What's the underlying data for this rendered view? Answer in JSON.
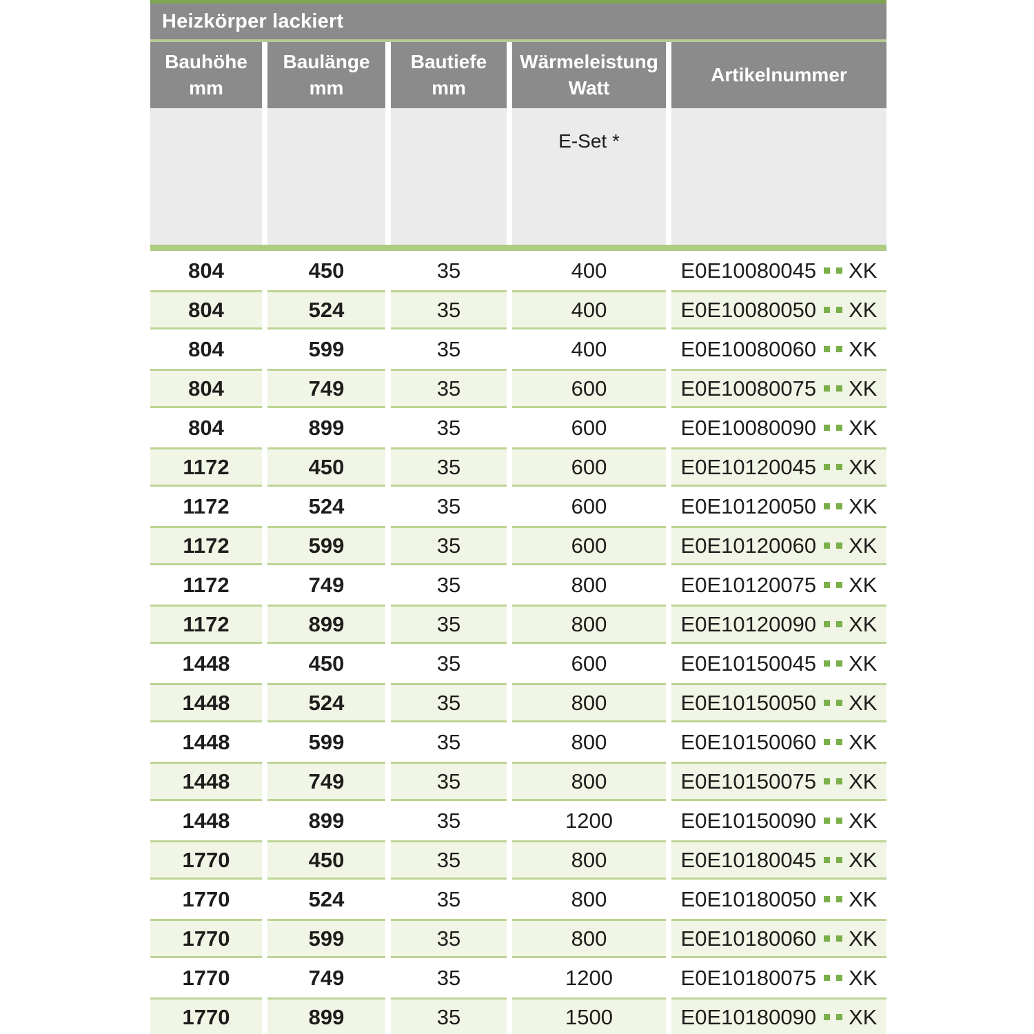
{
  "table": {
    "title": "Heizkörper lackiert",
    "columns": [
      {
        "lines": [
          "Bauhöhe",
          "mm"
        ]
      },
      {
        "lines": [
          "Baulänge",
          "mm"
        ]
      },
      {
        "lines": [
          "Bautiefe",
          "mm"
        ]
      },
      {
        "lines": [
          "Wärmeleistung",
          "Watt"
        ]
      },
      {
        "lines": [
          "Artikelnummer"
        ]
      }
    ],
    "subheader": {
      "eset_label": "E-Set *"
    },
    "rows": [
      {
        "bauhoehe": "804",
        "baulaenge": "450",
        "bautiefe": "35",
        "watt": "400",
        "artikel_code": "E0E10080045",
        "artikel_suffix": "XK",
        "shaded": false
      },
      {
        "bauhoehe": "804",
        "baulaenge": "524",
        "bautiefe": "35",
        "watt": "400",
        "artikel_code": "E0E10080050",
        "artikel_suffix": "XK",
        "shaded": true
      },
      {
        "bauhoehe": "804",
        "baulaenge": "599",
        "bautiefe": "35",
        "watt": "400",
        "artikel_code": "E0E10080060",
        "artikel_suffix": "XK",
        "shaded": false
      },
      {
        "bauhoehe": "804",
        "baulaenge": "749",
        "bautiefe": "35",
        "watt": "600",
        "artikel_code": "E0E10080075",
        "artikel_suffix": "XK",
        "shaded": true
      },
      {
        "bauhoehe": "804",
        "baulaenge": "899",
        "bautiefe": "35",
        "watt": "600",
        "artikel_code": "E0E10080090",
        "artikel_suffix": "XK",
        "shaded": false
      },
      {
        "bauhoehe": "1172",
        "baulaenge": "450",
        "bautiefe": "35",
        "watt": "600",
        "artikel_code": "E0E10120045",
        "artikel_suffix": "XK",
        "shaded": true
      },
      {
        "bauhoehe": "1172",
        "baulaenge": "524",
        "bautiefe": "35",
        "watt": "600",
        "artikel_code": "E0E10120050",
        "artikel_suffix": "XK",
        "shaded": false
      },
      {
        "bauhoehe": "1172",
        "baulaenge": "599",
        "bautiefe": "35",
        "watt": "600",
        "artikel_code": "E0E10120060",
        "artikel_suffix": "XK",
        "shaded": true
      },
      {
        "bauhoehe": "1172",
        "baulaenge": "749",
        "bautiefe": "35",
        "watt": "800",
        "artikel_code": "E0E10120075",
        "artikel_suffix": "XK",
        "shaded": false
      },
      {
        "bauhoehe": "1172",
        "baulaenge": "899",
        "bautiefe": "35",
        "watt": "800",
        "artikel_code": "E0E10120090",
        "artikel_suffix": "XK",
        "shaded": true
      },
      {
        "bauhoehe": "1448",
        "baulaenge": "450",
        "bautiefe": "35",
        "watt": "600",
        "artikel_code": "E0E10150045",
        "artikel_suffix": "XK",
        "shaded": false
      },
      {
        "bauhoehe": "1448",
        "baulaenge": "524",
        "bautiefe": "35",
        "watt": "800",
        "artikel_code": "E0E10150050",
        "artikel_suffix": "XK",
        "shaded": true
      },
      {
        "bauhoehe": "1448",
        "baulaenge": "599",
        "bautiefe": "35",
        "watt": "800",
        "artikel_code": "E0E10150060",
        "artikel_suffix": "XK",
        "shaded": false
      },
      {
        "bauhoehe": "1448",
        "baulaenge": "749",
        "bautiefe": "35",
        "watt": "800",
        "artikel_code": "E0E10150075",
        "artikel_suffix": "XK",
        "shaded": true
      },
      {
        "bauhoehe": "1448",
        "baulaenge": "899",
        "bautiefe": "35",
        "watt": "1200",
        "artikel_code": "E0E10150090",
        "artikel_suffix": "XK",
        "shaded": false
      },
      {
        "bauhoehe": "1770",
        "baulaenge": "450",
        "bautiefe": "35",
        "watt": "800",
        "artikel_code": "E0E10180045",
        "artikel_suffix": "XK",
        "shaded": true
      },
      {
        "bauhoehe": "1770",
        "baulaenge": "524",
        "bautiefe": "35",
        "watt": "800",
        "artikel_code": "E0E10180050",
        "artikel_suffix": "XK",
        "shaded": false
      },
      {
        "bauhoehe": "1770",
        "baulaenge": "599",
        "bautiefe": "35",
        "watt": "800",
        "artikel_code": "E0E10180060",
        "artikel_suffix": "XK",
        "shaded": true
      },
      {
        "bauhoehe": "1770",
        "baulaenge": "749",
        "bautiefe": "35",
        "watt": "1200",
        "artikel_code": "E0E10180075",
        "artikel_suffix": "XK",
        "shaded": false
      },
      {
        "bauhoehe": "1770",
        "baulaenge": "899",
        "bautiefe": "35",
        "watt": "1500",
        "artikel_code": "E0E10180090",
        "artikel_suffix": "XK",
        "shaded": true
      }
    ]
  },
  "colors": {
    "header_gray": "#8b8b8b",
    "top_accent_green": "#7fa64f",
    "separator_green": "#b5cb92",
    "band_green": "#aecb82",
    "row_shade_green": "#f0f5e6",
    "row_border_green": "#bcd494",
    "dot_green": "#7ab049",
    "subheader_gray": "#ebebeb",
    "text_dark": "#1d1d1b"
  }
}
